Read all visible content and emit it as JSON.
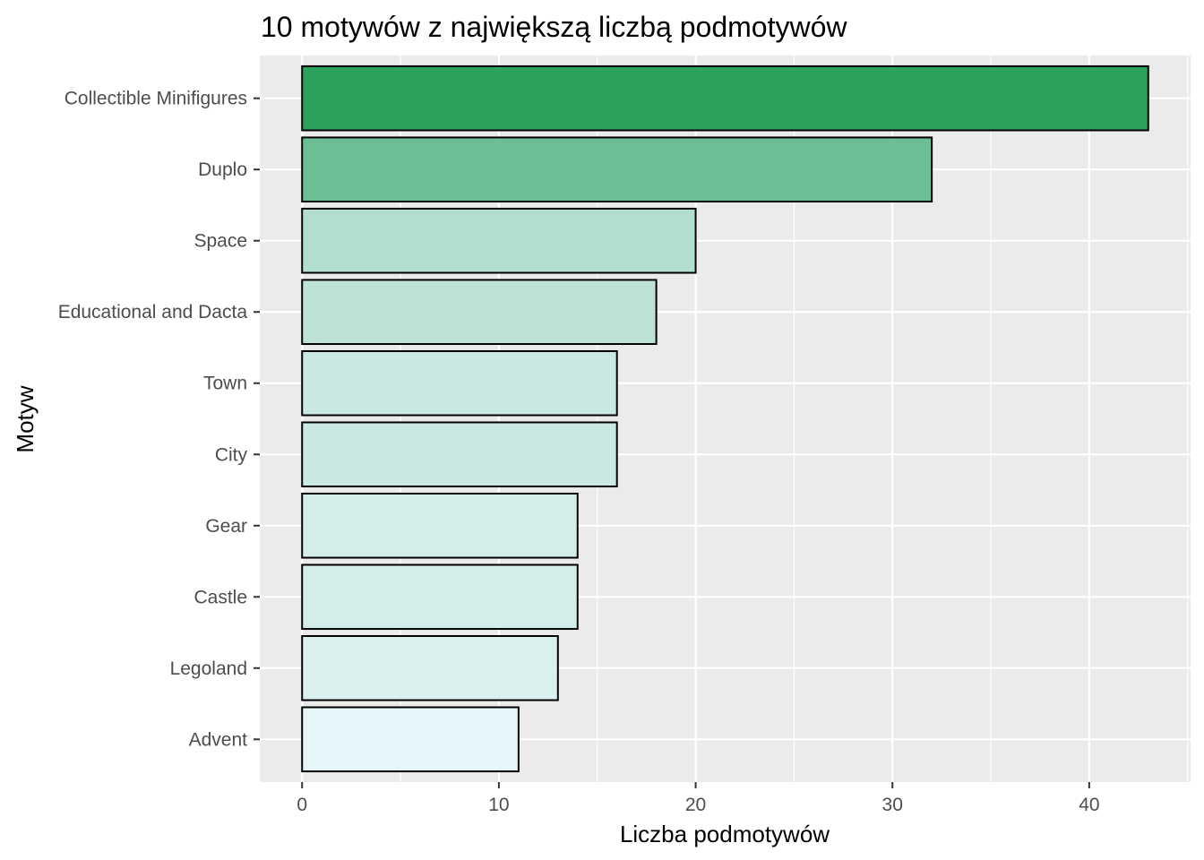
{
  "chart_data": {
    "type": "bar",
    "orientation": "horizontal",
    "title": "10 motywów z największą liczbą podmotywów",
    "xlabel": "Liczba podmotywów",
    "ylabel": "Motyw",
    "categories": [
      "Collectible Minifigures",
      "Duplo",
      "Space",
      "Educational and Dacta",
      "Town",
      "City",
      "Gear",
      "Castle",
      "Legoland",
      "Advent"
    ],
    "values": [
      43,
      32,
      20,
      18,
      16,
      16,
      14,
      14,
      13,
      11
    ],
    "xlim": [
      -2.15,
      45.15
    ],
    "x_ticks": [
      0,
      10,
      20,
      30,
      40
    ],
    "x_tick_labels": [
      "0",
      "10",
      "20",
      "30",
      "40"
    ],
    "grid": true,
    "legend": "none",
    "colors": {
      "panel_background": "#ebebeb",
      "grid_major": "#ffffff",
      "bar_outline": "#000000",
      "fill_low": "#e5f5f9",
      "fill_high": "#2ca25f"
    }
  }
}
